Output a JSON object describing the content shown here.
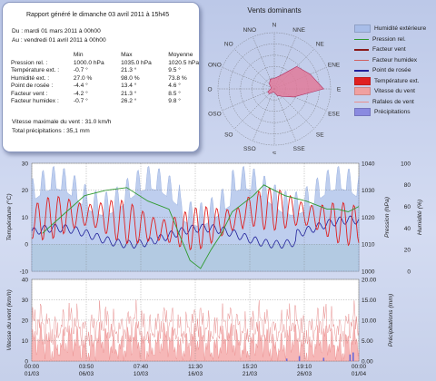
{
  "report": {
    "title": "Rapport généré le dimanche 03 avril 2011 à 15h45",
    "from": "Du : mardi 01 mars 2011 à 00h00",
    "to": "Au : vendredi 01 avril 2011 à 00h00",
    "columns": [
      "",
      "Min",
      "Max",
      "Moyenne"
    ],
    "rows": [
      [
        "Pression rel. :",
        "1000.0 hPa",
        "1035.0 hPa",
        "1020.5 hPa"
      ],
      [
        "Température ext. :",
        "-0.7 °",
        "21.3 °",
        "9.5 °"
      ],
      [
        "Humidité ext. :",
        "27.0 %",
        "98.0 %",
        "73.8 %"
      ],
      [
        "Point de rosée :",
        "-4.4 °",
        "13.4 °",
        "4.6 °"
      ],
      [
        "Facteur vent :",
        "-4.2 °",
        "21.3 °",
        "8.5 °"
      ],
      [
        "Facteur humidex :",
        "-0.7 °",
        "26.2 °",
        "9.8 °"
      ]
    ],
    "max_wind": "Vitesse maximale du vent : 31.0 km/h",
    "total_rain": "Total précipitations : 35,1 mm"
  },
  "rose": {
    "title": "Vents dominants",
    "directions": [
      "N",
      "NNE",
      "NE",
      "ENE",
      "E",
      "ESE",
      "SE",
      "SSE",
      "S",
      "SSO",
      "SO",
      "OSO",
      "O",
      "ONO",
      "NO",
      "NNO"
    ],
    "frequencies": [
      3,
      4,
      9,
      11,
      14,
      6,
      3,
      2,
      1,
      1,
      2,
      2,
      1,
      1,
      2,
      3
    ],
    "fill_color": "#e07a9a"
  },
  "legend": [
    {
      "name": "Humidité extérieure",
      "color": "#a8bde8",
      "kind": "area"
    },
    {
      "name": "Pression rel.",
      "color": "#2e9a2e",
      "kind": "line"
    },
    {
      "name": "Facteur vent",
      "color": "#8a1a1a",
      "kind": "line"
    },
    {
      "name": "Facteur humidex",
      "color": "#d06060",
      "kind": "line"
    },
    {
      "name": "Point de rosée",
      "color": "#20209a",
      "kind": "line"
    },
    {
      "name": "Température ext.",
      "color": "#e02020",
      "kind": "area"
    },
    {
      "name": "Vitesse du vent",
      "color": "#f0a0a0",
      "kind": "area"
    },
    {
      "name": "Rafales de vent",
      "color": "#e89090",
      "kind": "line"
    },
    {
      "name": "Précipitations",
      "color": "#8a8ae0",
      "kind": "area"
    }
  ],
  "chart_data": [
    {
      "type": "line",
      "x_tick_labels": [
        [
          "00:00",
          "01/03"
        ],
        [
          "03:50",
          "06/03"
        ],
        [
          "07:40",
          "10/03"
        ],
        [
          "11:30",
          "16/03"
        ],
        [
          "15:20",
          "21/03"
        ],
        [
          "19:10",
          "26/03"
        ],
        [
          "00:00",
          "01/04"
        ]
      ],
      "left_axis": {
        "label": "Température (°C)",
        "ticks": [
          -10,
          0,
          10,
          20,
          30
        ],
        "ylim": [
          -10,
          30
        ]
      },
      "right_axis_1": {
        "label": "Pression (hPa)",
        "ticks": [
          1000,
          1010,
          1020,
          1030,
          1040
        ],
        "ylim": [
          1000,
          1040
        ]
      },
      "right_axis_2": {
        "label": "Humidité (%)",
        "ticks": [
          0,
          20,
          40,
          60,
          80,
          100
        ],
        "ylim": [
          0,
          100
        ]
      },
      "series_stats": {
        "Température ext.": {
          "min": -0.7,
          "max": 21.3,
          "mean": 9.5
        },
        "Point de rosée": {
          "min": -4.4,
          "max": 13.4,
          "mean": 4.6
        },
        "Pression rel.": {
          "min": 1000.0,
          "max": 1035.0,
          "mean": 1020.5
        },
        "Humidité extérieure": {
          "min": 27.0,
          "max": 98.0,
          "mean": 73.8
        }
      },
      "pressure_trace": [
        [
          1,
          1014
        ],
        [
          3,
          1021
        ],
        [
          5,
          1028
        ],
        [
          7,
          1030
        ],
        [
          9,
          1031
        ],
        [
          11,
          1026
        ],
        [
          13,
          1023
        ],
        [
          15,
          1004
        ],
        [
          16,
          1001
        ],
        [
          17,
          1008
        ],
        [
          18,
          1014
        ],
        [
          19,
          1022
        ],
        [
          21,
          1028
        ],
        [
          22,
          1032
        ],
        [
          23,
          1030
        ],
        [
          24,
          1028
        ],
        [
          26,
          1026
        ],
        [
          28,
          1023
        ],
        [
          29,
          1023
        ],
        [
          30,
          1022
        ],
        [
          31,
          1024
        ]
      ]
    },
    {
      "type": "area",
      "x_tick_labels": [
        [
          "00:00",
          "01/03"
        ],
        [
          "03:50",
          "06/03"
        ],
        [
          "07:40",
          "10/03"
        ],
        [
          "11:30",
          "16/03"
        ],
        [
          "15:20",
          "21/03"
        ],
        [
          "19:10",
          "26/03"
        ],
        [
          "00:00",
          "01/04"
        ]
      ],
      "left_axis": {
        "label": "Vitesse du vent (km/h)",
        "ticks": [
          0,
          10,
          20,
          30,
          40
        ],
        "ylim": [
          0,
          40
        ]
      },
      "right_axis": {
        "label": "Précipitations (mm)",
        "ticks": [
          0,
          5,
          10,
          15,
          20
        ],
        "ylim": [
          0,
          20
        ]
      },
      "wind_max": 31.0,
      "rain_total": 35.1
    }
  ]
}
